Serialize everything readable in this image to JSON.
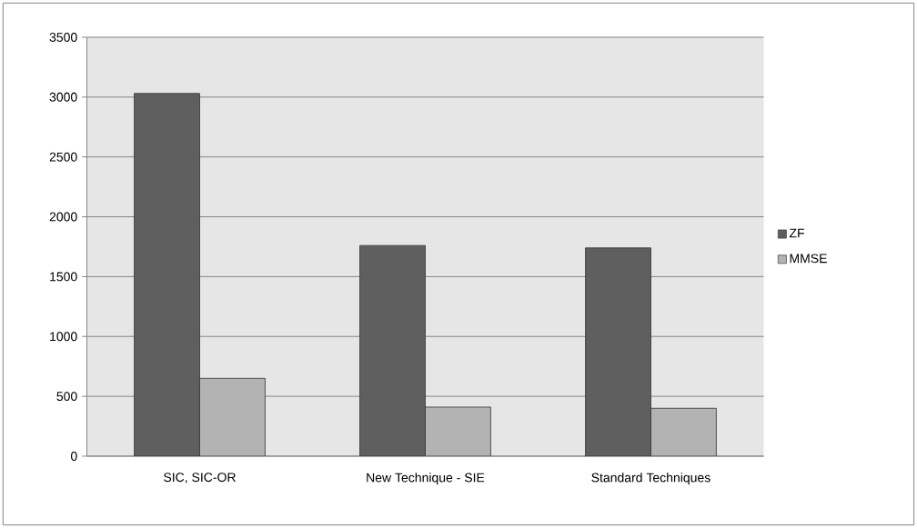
{
  "chart_data": {
    "type": "bar",
    "categories": [
      "SIC, SIC-OR",
      "New Technique - SIE",
      "Standard Techniques"
    ],
    "series": [
      {
        "name": "ZF",
        "color": "#5f5f5f",
        "values": [
          3030,
          1760,
          1740
        ]
      },
      {
        "name": "MMSE",
        "color": "#b3b3b3",
        "values": [
          650,
          410,
          400
        ]
      }
    ],
    "ylim": [
      0,
      3500
    ],
    "yticks": [
      0,
      500,
      1000,
      1500,
      2000,
      2500,
      3000,
      3500
    ],
    "grid": "y",
    "legend": "right"
  }
}
